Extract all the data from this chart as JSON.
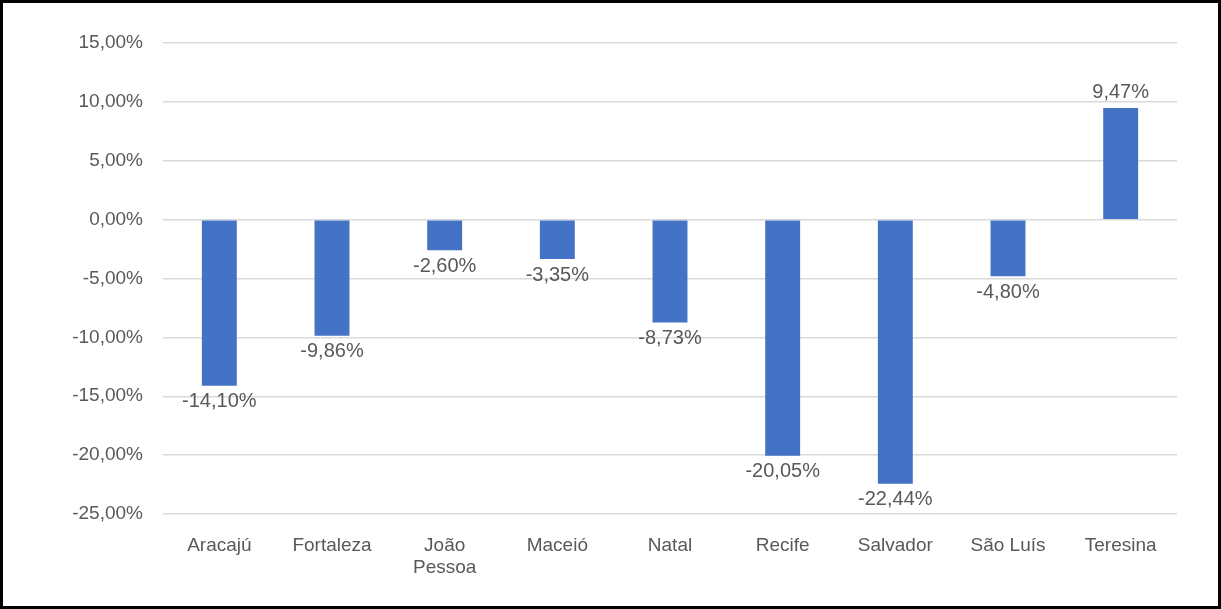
{
  "chart_data": {
    "type": "bar",
    "categories": [
      "Aracajú",
      "Fortaleza",
      "João Pessoa",
      "Maceió",
      "Natal",
      "Recife",
      "Salvador",
      "São Luís",
      "Teresina"
    ],
    "values": [
      -14.1,
      -9.86,
      -2.6,
      -3.35,
      -8.73,
      -20.05,
      -22.44,
      -4.8,
      9.47
    ],
    "color": "#4472c4",
    "value_labels": [
      "-14,10%",
      "-9,86%",
      "-2,60%",
      "-3,35%",
      "-8,73%",
      "-20,05%",
      "-22,44%",
      "-4,80%",
      "9,47%"
    ],
    "ylim": [
      -25,
      15
    ],
    "yticks": [
      {
        "value": -25,
        "label": "-25,00%"
      },
      {
        "value": -20,
        "label": "-20,00%"
      },
      {
        "value": -15,
        "label": "-15,00%"
      },
      {
        "value": -10,
        "label": "-10,00%"
      },
      {
        "value": -5,
        "label": "-5,00%"
      },
      {
        "value": 0,
        "label": "0,00%"
      },
      {
        "value": 5,
        "label": "5,00%"
      },
      {
        "value": 10,
        "label": "10,00%"
      },
      {
        "value": 15,
        "label": "15,00%"
      }
    ],
    "grid": "y"
  }
}
